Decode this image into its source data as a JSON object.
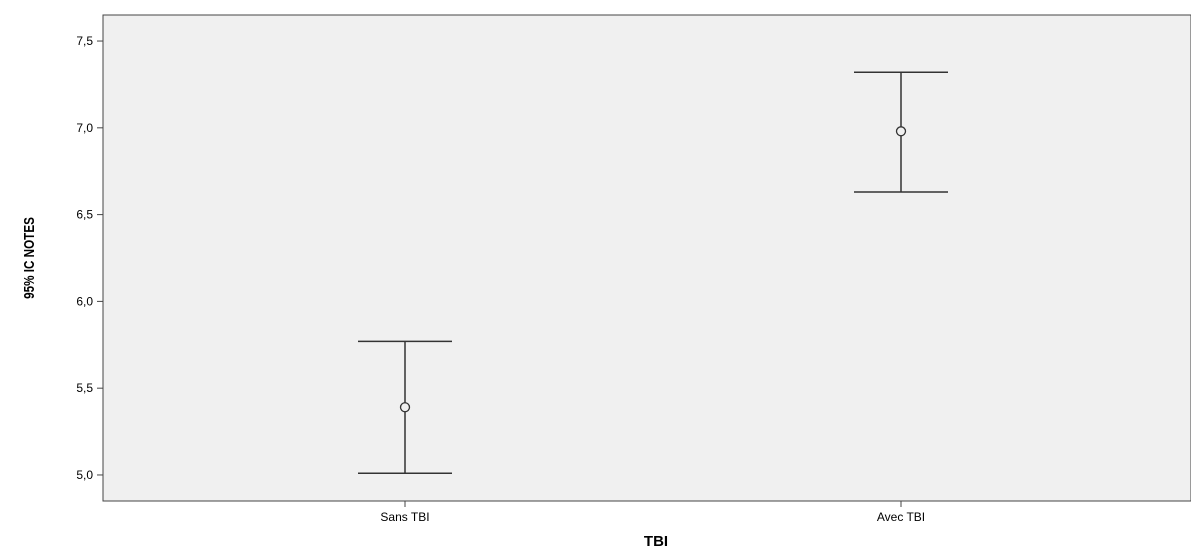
{
  "chart_data": {
    "type": "errorbar",
    "title": "",
    "xlabel": "TBI",
    "ylabel": "95% IC NOTES",
    "categories": [
      "Sans TBI",
      "Avec TBI"
    ],
    "series": [
      {
        "mean": [
          5.39,
          6.98
        ],
        "lower": [
          5.01,
          6.63
        ],
        "upper": [
          5.77,
          7.32
        ]
      }
    ],
    "ylim": [
      4.85,
      7.65
    ],
    "yticks": [
      5.0,
      5.5,
      6.0,
      6.5,
      7.0,
      7.5
    ],
    "ytick_labels": [
      "5,0",
      "5,5",
      "6,0",
      "6,5",
      "7,0",
      "7,5"
    ],
    "grid": false,
    "legend": "none",
    "colors": {
      "plot_background": "#f0f0f0",
      "axis": "#444444",
      "marks": "#333333"
    }
  }
}
